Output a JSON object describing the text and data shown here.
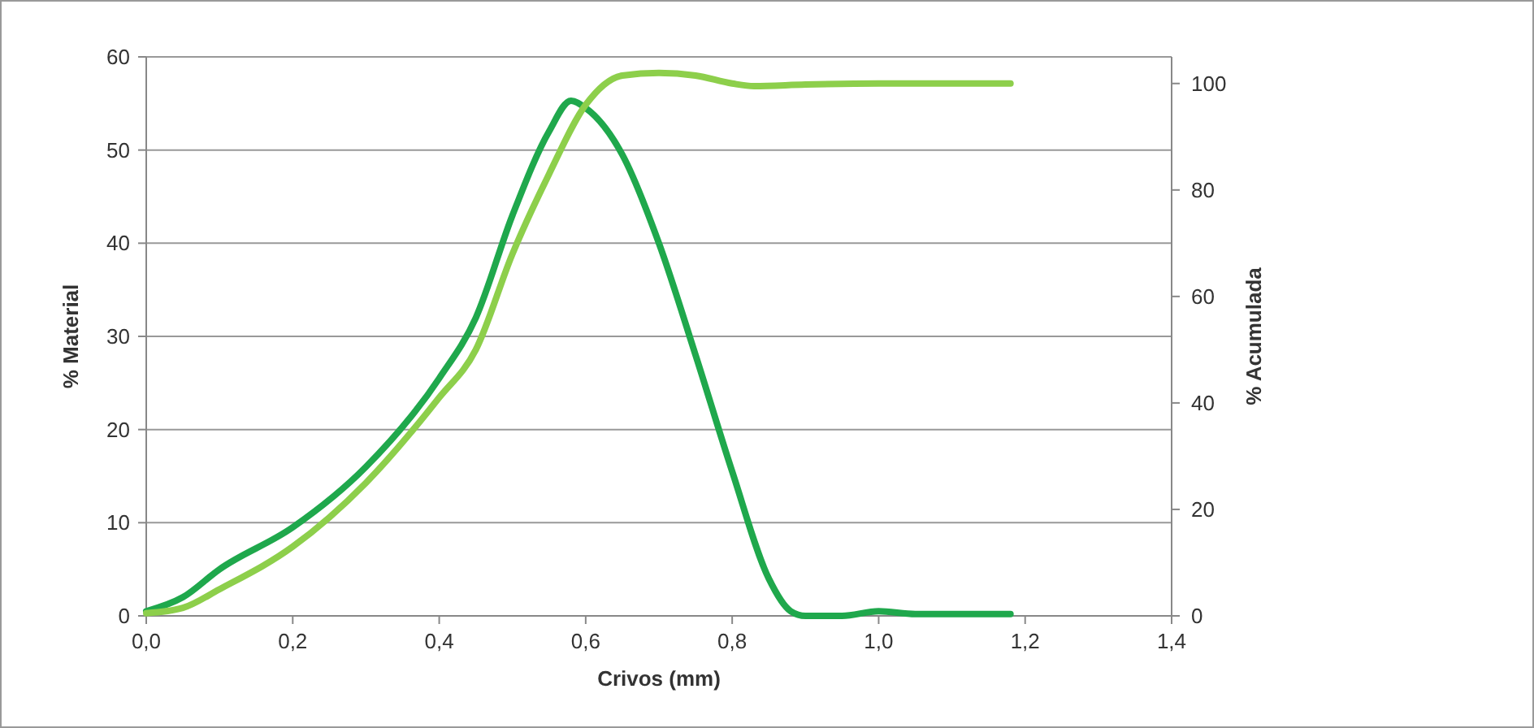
{
  "chart_data": {
    "type": "line",
    "xlabel": "Crivos (mm)",
    "ylabel": "% Material",
    "y2label": "% Acumulada",
    "xlim": [
      0,
      1.4
    ],
    "xticks": [
      {
        "value": 0,
        "label": "0,0"
      },
      {
        "value": 0.2,
        "label": "0,2"
      },
      {
        "value": 0.4,
        "label": "0,4"
      },
      {
        "value": 0.6,
        "label": "0,6"
      },
      {
        "value": 0.8,
        "label": "0,8"
      },
      {
        "value": 1,
        "label": "1,0"
      },
      {
        "value": 1.2,
        "label": "1,2"
      },
      {
        "value": 1.4,
        "label": "1,4"
      }
    ],
    "ylim": [
      0,
      60
    ],
    "yticks": [
      0,
      10,
      20,
      30,
      40,
      50,
      60
    ],
    "y2lim": [
      0,
      105
    ],
    "y2ticks": [
      0,
      20,
      40,
      60,
      80,
      100
    ],
    "grid": "y",
    "marker": "none",
    "line_style": "solid",
    "series": [
      {
        "color": "#1fa84c",
        "x": [
          0,
          0.05,
          0.1,
          0.2,
          0.3,
          0.4,
          0.45,
          0.5,
          0.55,
          0.58,
          0.6,
          0.65,
          0.7,
          0.75,
          0.8,
          0.85,
          0.88,
          0.9,
          0.95,
          1.0,
          1.05,
          1.18
        ],
        "values": [
          0.5,
          2,
          5,
          9.5,
          16,
          25.5,
          32,
          43,
          52,
          55.3,
          54.5,
          49.5,
          40,
          28,
          15.5,
          4,
          0.5,
          0,
          0,
          0.5,
          0.2,
          0.2
        ]
      },
      {
        "color": "#8dcf4b",
        "axis": "y2",
        "x": [
          0,
          0.05,
          0.1,
          0.2,
          0.3,
          0.4,
          0.45,
          0.5,
          0.55,
          0.6,
          0.65,
          0.7,
          0.75,
          0.8,
          0.83,
          0.9,
          1.0,
          1.18
        ],
        "values": [
          0.5,
          1.5,
          5,
          13,
          25,
          41,
          50,
          68,
          83,
          96,
          101.5,
          102,
          101.5,
          100,
          99.5,
          99.8,
          100,
          100
        ]
      }
    ]
  }
}
